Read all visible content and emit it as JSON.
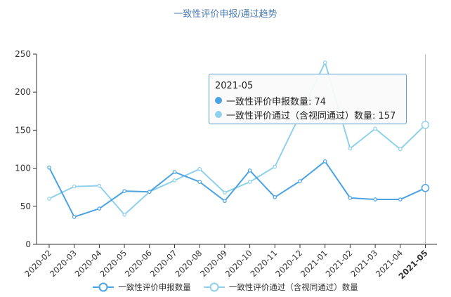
{
  "chart_data": {
    "type": "line",
    "title": "一致性评价申报/通过趋势",
    "categories": [
      "2020-02",
      "2020-03",
      "2020-04",
      "2020-05",
      "2020-06",
      "2020-07",
      "2020-08",
      "2020-09",
      "2020-10",
      "2020-11",
      "2020-12",
      "2021-01",
      "2021-02",
      "2021-03",
      "2021-04",
      "2021-05"
    ],
    "series": [
      {
        "name": "一致性评价申报数量",
        "values": [
          101,
          36,
          47,
          70,
          69,
          95,
          82,
          57,
          97,
          62,
          83,
          109,
          61,
          59,
          59,
          74
        ],
        "color": "#4ba3e3"
      },
      {
        "name": "一致性评价通过（含视同通过）数量",
        "values": [
          60,
          76,
          77,
          39,
          69,
          84,
          99,
          68,
          82,
          102,
          170,
          239,
          126,
          152,
          125,
          157
        ],
        "color": "#8fd1ea"
      }
    ],
    "ylim": [
      0,
      250
    ],
    "yticks": [
      0,
      50,
      100,
      150,
      200,
      250
    ],
    "grid": false,
    "legend": "bottom",
    "highlight_category": "2021-05"
  },
  "tooltip": {
    "title": "2021-05",
    "rows": [
      {
        "label": "一致性评价申报数量: 74",
        "color": "#4ba3e3"
      },
      {
        "label": "一致性评价通过（含视同通过）数量: 157",
        "color": "#8fd1ea"
      }
    ]
  }
}
